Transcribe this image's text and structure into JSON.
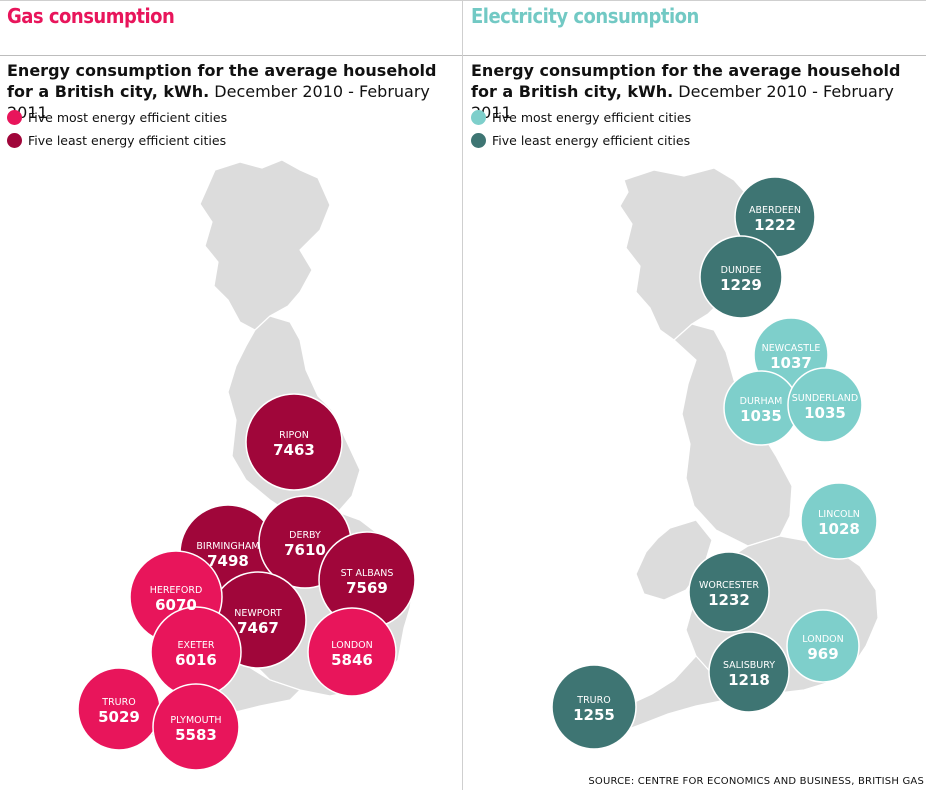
{
  "gas": {
    "title": "Gas consumption",
    "subtitle_bold": "Energy consumption for the average household for a British city, kWh.",
    "subtitle_normal": " December 2010 - February 2011",
    "legend": [
      {
        "label": "Five most energy efficient cities",
        "color": "#e8155b"
      },
      {
        "label": "Five least energy efficient cities",
        "color": "#a0063a"
      }
    ],
    "title_color": "#e8155b"
  },
  "electricity": {
    "title": "Electricity consumption",
    "subtitle_bold": "Energy consumption for the average household for a British city, kWh.",
    "subtitle_normal": " December 2010 - February 2011",
    "legend": [
      {
        "label": "Five most energy efficient cities",
        "color": "#7ecfcb"
      },
      {
        "label": "Five least energy efficient cities",
        "color": "#3e7573"
      }
    ],
    "title_color": "#72c9c4"
  },
  "source": "SOURCE: CENTRE FOR ECONOMICS AND BUSINESS, BRITISH GAS",
  "chart_data": [
    {
      "type": "bubble-map",
      "title": "Gas consumption",
      "unit": "kWh",
      "points": [
        {
          "city": "RIPON",
          "value": 7463,
          "group": "least efficient"
        },
        {
          "city": "BIRMINGHAM",
          "value": 7498,
          "group": "least efficient"
        },
        {
          "city": "DERBY",
          "value": 7610,
          "group": "least efficient"
        },
        {
          "city": "ST ALBANS",
          "value": 7569,
          "group": "least efficient"
        },
        {
          "city": "NEWPORT",
          "value": 7467,
          "group": "least efficient"
        },
        {
          "city": "HEREFORD",
          "value": 6070,
          "group": "most efficient"
        },
        {
          "city": "EXETER",
          "value": 6016,
          "group": "most efficient"
        },
        {
          "city": "LONDON",
          "value": 5846,
          "group": "most efficient"
        },
        {
          "city": "TRURO",
          "value": 5029,
          "group": "most efficient"
        },
        {
          "city": "PLYMOUTH",
          "value": 5583,
          "group": "most efficient"
        }
      ]
    },
    {
      "type": "bubble-map",
      "title": "Electricity consumption",
      "unit": "kWh",
      "points": [
        {
          "city": "ABERDEEN",
          "value": 1222,
          "group": "least efficient"
        },
        {
          "city": "DUNDEE",
          "value": 1229,
          "group": "least efficient"
        },
        {
          "city": "NEWCASTLE",
          "value": 1037,
          "group": "most efficient"
        },
        {
          "city": "DURHAM",
          "value": 1035,
          "group": "most efficient"
        },
        {
          "city": "SUNDERLAND",
          "value": 1035,
          "group": "most efficient"
        },
        {
          "city": "LINCOLN",
          "value": 1028,
          "group": "most efficient"
        },
        {
          "city": "WORCESTER",
          "value": 1232,
          "group": "least efficient"
        },
        {
          "city": "LONDON",
          "value": 969,
          "group": "most efficient"
        },
        {
          "city": "SALISBURY",
          "value": 1218,
          "group": "least efficient"
        },
        {
          "city": "TRURO",
          "value": 1255,
          "group": "least efficient"
        }
      ]
    }
  ]
}
